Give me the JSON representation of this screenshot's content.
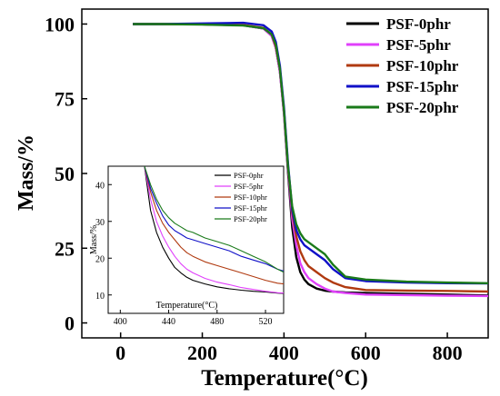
{
  "chart_data": {
    "type": "line",
    "title": "",
    "xlabel": "Temperature(°C)",
    "ylabel": "Mass/%",
    "xlim": [
      -95,
      900
    ],
    "ylim": [
      -5,
      105
    ],
    "x_ticks": [
      0,
      200,
      400,
      600,
      800
    ],
    "y_ticks": [
      0,
      25,
      50,
      75,
      100
    ],
    "legend_position": "top-right",
    "series": [
      {
        "name": "PSF-0phr",
        "color": "#000000",
        "x": [
          30,
          100,
          200,
          300,
          350,
          370,
          380,
          390,
          400,
          410,
          420,
          430,
          440,
          450,
          460,
          480,
          500,
          520,
          550,
          600,
          700,
          800,
          900
        ],
        "y": [
          100,
          100,
          99.9,
          99.6,
          98.5,
          96,
          92,
          84,
          70,
          50,
          32,
          22,
          17,
          14.5,
          13,
          11.5,
          10.8,
          10.5,
          10.2,
          10,
          9.7,
          9.5,
          9.2
        ]
      },
      {
        "name": "PSF-5phr",
        "color": "#e040fb",
        "x": [
          30,
          100,
          200,
          300,
          350,
          370,
          380,
          390,
          400,
          410,
          420,
          430,
          440,
          450,
          460,
          480,
          500,
          520,
          550,
          600,
          700,
          800,
          900
        ],
        "y": [
          100,
          100,
          99.9,
          99.6,
          98.5,
          96,
          92,
          84,
          70,
          51,
          35,
          26,
          20,
          17,
          15,
          13,
          11.5,
          10.5,
          10,
          9.5,
          9.3,
          9.1,
          9
        ]
      },
      {
        "name": "PSF-10phr",
        "color": "#b03a10",
        "x": [
          30,
          100,
          200,
          300,
          350,
          370,
          380,
          390,
          400,
          410,
          420,
          430,
          440,
          450,
          460,
          480,
          500,
          520,
          550,
          600,
          700,
          800,
          900
        ],
        "y": [
          100,
          100,
          99.9,
          99.7,
          98.7,
          96.5,
          92.5,
          85,
          71,
          52,
          37,
          29,
          24,
          21,
          19,
          17,
          15,
          13.5,
          12,
          11,
          10.8,
          10.7,
          10.5
        ]
      },
      {
        "name": "PSF-15phr",
        "color": "#1010c8",
        "x": [
          30,
          100,
          200,
          300,
          350,
          370,
          380,
          390,
          400,
          410,
          420,
          430,
          440,
          450,
          460,
          480,
          500,
          520,
          550,
          600,
          700,
          800,
          900
        ],
        "y": [
          100,
          100,
          100.2,
          100.4,
          99.6,
          97.5,
          94,
          86,
          72,
          53,
          38,
          31,
          28,
          26,
          25,
          23,
          21,
          18,
          15,
          14,
          13.5,
          13.3,
          13.2
        ]
      },
      {
        "name": "PSF-20phr",
        "color": "#1a7a1a",
        "x": [
          30,
          100,
          200,
          300,
          350,
          370,
          380,
          390,
          400,
          410,
          420,
          430,
          440,
          450,
          460,
          480,
          500,
          520,
          550,
          600,
          700,
          800,
          900
        ],
        "y": [
          100,
          100,
          99.8,
          99.5,
          98.6,
          96.5,
          93,
          85,
          71,
          52,
          39,
          33,
          30,
          28,
          27,
          25,
          23,
          19.5,
          15.5,
          14.5,
          13.8,
          13.5,
          13.3
        ]
      }
    ],
    "inset": {
      "xlabel": "Temperature(°C)",
      "ylabel": "Mass/%",
      "xlim": [
        390,
        535
      ],
      "ylim": [
        5,
        45
      ],
      "x_ticks": [
        400,
        440,
        480,
        520
      ],
      "y_ticks": [
        10,
        20,
        30,
        40
      ],
      "legend_position": "top-right",
      "series": [
        {
          "name": "PSF-0phr",
          "color": "#000000",
          "x": [
            420,
            425,
            430,
            435,
            440,
            445,
            450,
            455,
            460,
            470,
            480,
            490,
            500,
            510,
            520,
            530,
            535
          ],
          "y": [
            45,
            33,
            27,
            23,
            20,
            17.5,
            16,
            14.8,
            14,
            13,
            12.2,
            11.7,
            11.3,
            11,
            10.8,
            10.5,
            10.4
          ]
        },
        {
          "name": "PSF-5phr",
          "color": "#e040fb",
          "x": [
            420,
            425,
            430,
            435,
            440,
            445,
            450,
            455,
            460,
            470,
            480,
            490,
            500,
            510,
            520,
            530,
            535
          ],
          "y": [
            45,
            36,
            30,
            26,
            23,
            20.5,
            18.5,
            17,
            16,
            14.5,
            13.5,
            12.8,
            12,
            11.5,
            11,
            10.6,
            10.5
          ]
        },
        {
          "name": "PSF-10phr",
          "color": "#b03a10",
          "x": [
            420,
            425,
            430,
            435,
            440,
            445,
            450,
            455,
            460,
            470,
            480,
            490,
            500,
            510,
            520,
            530,
            535
          ],
          "y": [
            45,
            38,
            33,
            29.5,
            27,
            25,
            23,
            21.5,
            20.5,
            19,
            18,
            17,
            16,
            15,
            14,
            13.2,
            13
          ]
        },
        {
          "name": "PSF-15phr",
          "color": "#1010c8",
          "x": [
            420,
            425,
            430,
            435,
            440,
            445,
            450,
            455,
            460,
            470,
            480,
            490,
            500,
            510,
            520,
            530,
            535
          ],
          "y": [
            45,
            39,
            35,
            31.5,
            29,
            27.5,
            26.5,
            25.5,
            25,
            24,
            23,
            22,
            20.5,
            19.5,
            18.5,
            17,
            16.5
          ]
        },
        {
          "name": "PSF-20phr",
          "color": "#1a7a1a",
          "x": [
            420,
            425,
            430,
            435,
            440,
            445,
            450,
            455,
            460,
            470,
            480,
            490,
            500,
            510,
            520,
            530,
            535
          ],
          "y": [
            45,
            40,
            36,
            33,
            31,
            29.5,
            28.5,
            27.5,
            27,
            25.5,
            24.5,
            23.5,
            22,
            20.5,
            19,
            17,
            16.2
          ]
        }
      ]
    }
  }
}
